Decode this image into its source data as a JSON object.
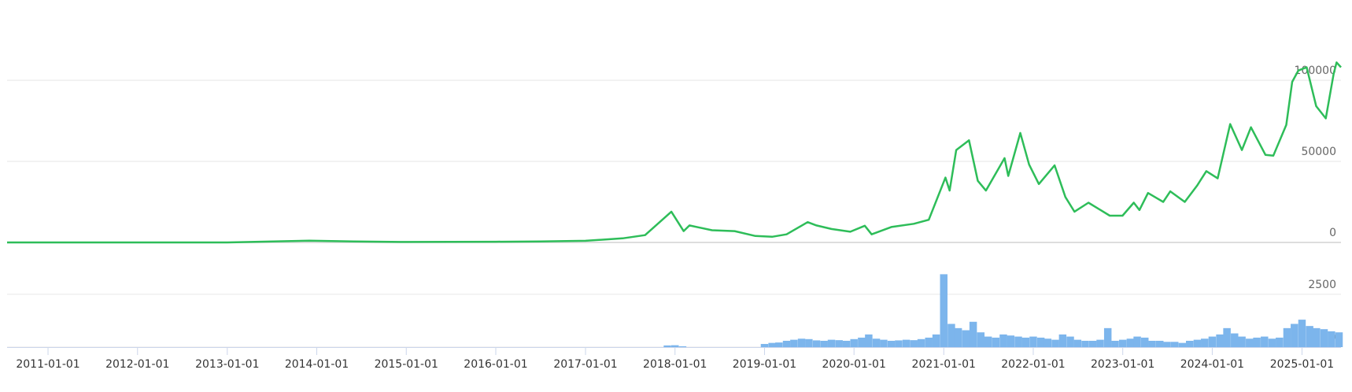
{
  "chart_data": [
    {
      "type": "line",
      "color": "#2ebd59",
      "x": [
        "2010-07-18",
        "2011-06-01",
        "2012-01-01",
        "2013-01-01",
        "2013-12-01",
        "2014-06-01",
        "2015-01-01",
        "2016-01-01",
        "2016-07-01",
        "2017-01-01",
        "2017-06-01",
        "2017-09-01",
        "2017-12-17",
        "2018-02-05",
        "2018-03-01",
        "2018-06-01",
        "2018-09-01",
        "2018-11-25",
        "2019-02-01",
        "2019-04-01",
        "2019-06-26",
        "2019-08-01",
        "2019-10-01",
        "2019-12-17",
        "2020-02-14",
        "2020-03-13",
        "2020-06-01",
        "2020-09-01",
        "2020-11-01",
        "2021-01-08",
        "2021-01-25",
        "2021-02-21",
        "2021-04-14",
        "2021-05-20",
        "2021-06-22",
        "2021-09-06",
        "2021-09-21",
        "2021-11-09",
        "2021-12-15",
        "2022-01-24",
        "2022-03-29",
        "2022-05-12",
        "2022-06-18",
        "2022-08-14",
        "2022-11-09",
        "2022-12-31",
        "2023-02-15",
        "2023-03-10",
        "2023-04-14",
        "2023-06-15",
        "2023-07-14",
        "2023-09-11",
        "2023-10-31",
        "2023-12-08",
        "2024-01-23",
        "2024-03-14",
        "2024-05-01",
        "2024-06-07",
        "2024-08-05",
        "2024-09-06",
        "2024-10-29",
        "2024-11-22",
        "2024-12-17",
        "2025-01-20",
        "2025-02-28",
        "2025-04-08",
        "2025-05-10",
        "2025-05-22",
        "2025-06-09"
      ],
      "values": [
        0,
        20,
        5,
        13,
        1100,
        600,
        300,
        430,
        650,
        1000,
        2500,
        4500,
        19000,
        7000,
        10500,
        7500,
        7000,
        4000,
        3500,
        5000,
        12500,
        10500,
        8300,
        6600,
        10300,
        5000,
        9500,
        11500,
        14000,
        40000,
        32000,
        57000,
        63000,
        38000,
        32000,
        52000,
        41000,
        67500,
        48000,
        36000,
        47500,
        28000,
        19000,
        24500,
        16500,
        16500,
        24500,
        20000,
        30500,
        25000,
        31500,
        25000,
        35000,
        44000,
        39500,
        73000,
        57000,
        71000,
        54000,
        53500,
        72500,
        99000,
        106000,
        108000,
        84000,
        76500,
        104000,
        111000,
        108000
      ],
      "xlim": [
        "2010-07-18",
        "2025-06-09"
      ],
      "ylim": [
        0,
        149500
      ],
      "yticks": [
        0,
        50000,
        100000
      ],
      "grid": true
    },
    {
      "type": "bar",
      "color": "#7cb5ec",
      "x": [
        "2017-12-01",
        "2018-01-01",
        "2018-02-01",
        "2019-01-01",
        "2019-02-01",
        "2019-03-01",
        "2019-04-01",
        "2019-05-01",
        "2019-06-01",
        "2019-07-01",
        "2019-08-01",
        "2019-09-01",
        "2019-10-01",
        "2019-11-01",
        "2019-12-01",
        "2020-01-01",
        "2020-02-01",
        "2020-03-01",
        "2020-04-01",
        "2020-05-01",
        "2020-06-01",
        "2020-07-01",
        "2020-08-01",
        "2020-09-01",
        "2020-10-01",
        "2020-11-01",
        "2020-12-01",
        "2021-01-01",
        "2021-02-01",
        "2021-03-01",
        "2021-04-01",
        "2021-05-01",
        "2021-06-01",
        "2021-07-01",
        "2021-08-01",
        "2021-09-01",
        "2021-10-01",
        "2021-11-01",
        "2021-12-01",
        "2022-01-01",
        "2022-02-01",
        "2022-03-01",
        "2022-04-01",
        "2022-05-01",
        "2022-06-01",
        "2022-07-01",
        "2022-08-01",
        "2022-09-01",
        "2022-10-01",
        "2022-11-01",
        "2022-12-01",
        "2023-01-01",
        "2023-02-01",
        "2023-03-01",
        "2023-04-01",
        "2023-05-01",
        "2023-06-01",
        "2023-07-01",
        "2023-08-01",
        "2023-09-01",
        "2023-10-01",
        "2023-11-01",
        "2023-12-01",
        "2024-01-01",
        "2024-02-01",
        "2024-03-01",
        "2024-04-01",
        "2024-05-01",
        "2024-06-01",
        "2024-07-01",
        "2024-08-01",
        "2024-09-01",
        "2024-10-01",
        "2024-11-01",
        "2024-12-01",
        "2025-01-01",
        "2025-02-01",
        "2025-03-01",
        "2025-04-01",
        "2025-05-01",
        "2025-06-01"
      ],
      "values": [
        80,
        90,
        40,
        150,
        200,
        220,
        300,
        350,
        400,
        380,
        320,
        300,
        350,
        330,
        300,
        380,
        450,
        600,
        400,
        350,
        300,
        320,
        350,
        330,
        380,
        450,
        600,
        3450,
        1100,
        900,
        800,
        1200,
        700,
        500,
        450,
        600,
        550,
        500,
        450,
        500,
        450,
        400,
        350,
        600,
        500,
        350,
        300,
        300,
        350,
        900,
        300,
        350,
        400,
        500,
        450,
        300,
        300,
        250,
        250,
        200,
        300,
        350,
        400,
        500,
        600,
        900,
        650,
        500,
        400,
        450,
        500,
        400,
        450,
        900,
        1100,
        1300,
        1000,
        900,
        850,
        750,
        700
      ],
      "xlim": [
        "2010-07-18",
        "2025-06-09"
      ],
      "ylim": [
        0,
        3800
      ],
      "yticks": [
        0,
        2500
      ],
      "grid": true,
      "xticks": [
        "2011-01-01",
        "2012-01-01",
        "2013-01-01",
        "2014-01-01",
        "2015-01-01",
        "2016-01-01",
        "2017-01-01",
        "2018-01-01",
        "2019-01-01",
        "2020-01-01",
        "2021-01-01",
        "2022-01-01",
        "2023-01-01",
        "2024-01-01",
        "2025-01-01"
      ]
    }
  ]
}
